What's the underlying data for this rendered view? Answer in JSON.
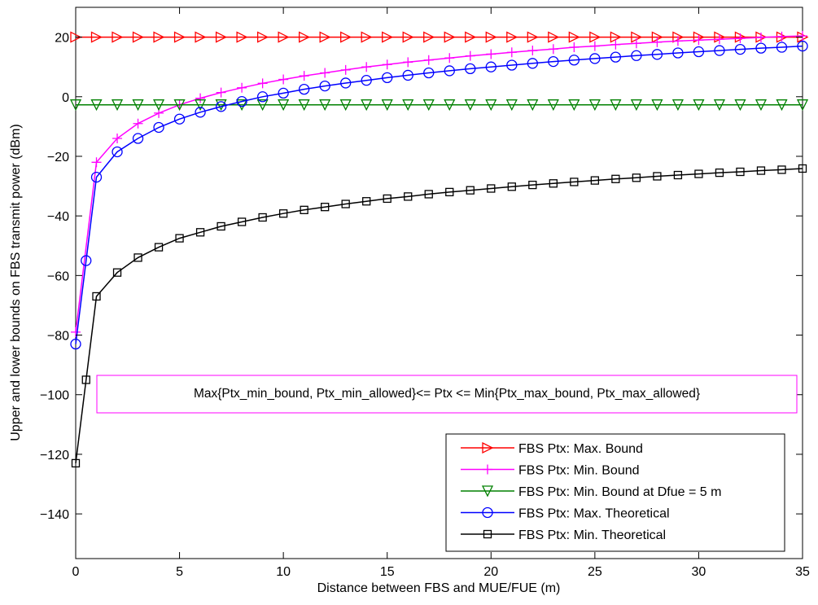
{
  "chart_data": {
    "type": "line",
    "xlabel": "Distance between FBS and MUE/FUE (m)",
    "ylabel": "Upper and lower bounds on FBS transmit power (dBm)",
    "xlim": [
      0,
      35
    ],
    "ylim": [
      -155,
      30
    ],
    "xticks": [
      0,
      5,
      10,
      15,
      20,
      25,
      30,
      35
    ],
    "yticks": [
      -140,
      -120,
      -100,
      -80,
      -60,
      -40,
      -20,
      0,
      20
    ],
    "grid": false,
    "legend_position": "bottom-right",
    "annotation": "Max{Ptx_min_bound, Ptx_min_allowed}<= Ptx <= Min{Ptx_max_bound, Ptx_max_allowed}",
    "series": [
      {
        "name": "FBS Ptx: Max. Bound",
        "color": "#ff0000",
        "marker": "triangle-right",
        "x": [
          0,
          1,
          2,
          3,
          4,
          5,
          6,
          7,
          8,
          9,
          10,
          11,
          12,
          13,
          14,
          15,
          16,
          17,
          18,
          19,
          20,
          21,
          22,
          23,
          24,
          25,
          26,
          27,
          28,
          29,
          30,
          31,
          32,
          33,
          34,
          35
        ],
        "y": [
          20,
          20,
          20,
          20,
          20,
          20,
          20,
          20,
          20,
          20,
          20,
          20,
          20,
          20,
          20,
          20,
          20,
          20,
          20,
          20,
          20,
          20,
          20,
          20,
          20,
          20,
          20,
          20,
          20,
          20,
          20,
          20,
          20,
          20,
          20,
          20
        ]
      },
      {
        "name": "FBS Ptx: Min. Bound",
        "color": "#ff00ff",
        "marker": "plus",
        "x": [
          0,
          1,
          2,
          3,
          4,
          5,
          6,
          7,
          8,
          9,
          10,
          11,
          12,
          13,
          14,
          15,
          16,
          17,
          18,
          19,
          20,
          21,
          22,
          23,
          24,
          25,
          26,
          27,
          28,
          29,
          30,
          31,
          32,
          33,
          34,
          35
        ],
        "y": [
          -79,
          -22,
          -14,
          -9,
          -5.5,
          -2.7,
          -0.5,
          1.4,
          3,
          4.5,
          5.8,
          7,
          8,
          9,
          10,
          10.8,
          11.6,
          12.3,
          13,
          13.7,
          14.3,
          14.9,
          15.5,
          16,
          16.6,
          17,
          17.5,
          17.9,
          18.3,
          18.7,
          19,
          19.3,
          19.6,
          19.9,
          20.2,
          20.4
        ]
      },
      {
        "name": "FBS Ptx: Min. Bound at Dfue = 5 m",
        "color": "#008000",
        "marker": "triangle-down",
        "x": [
          0,
          1,
          2,
          3,
          4,
          5,
          6,
          7,
          8,
          9,
          10,
          11,
          12,
          13,
          14,
          15,
          16,
          17,
          18,
          19,
          20,
          21,
          22,
          23,
          24,
          25,
          26,
          27,
          28,
          29,
          30,
          31,
          32,
          33,
          34,
          35
        ],
        "y": [
          -2.7,
          -2.7,
          -2.7,
          -2.7,
          -2.7,
          -2.7,
          -2.7,
          -2.7,
          -2.7,
          -2.7,
          -2.7,
          -2.7,
          -2.7,
          -2.7,
          -2.7,
          -2.7,
          -2.7,
          -2.7,
          -2.7,
          -2.7,
          -2.7,
          -2.7,
          -2.7,
          -2.7,
          -2.7,
          -2.7,
          -2.7,
          -2.7,
          -2.7,
          -2.7,
          -2.7,
          -2.7,
          -2.7,
          -2.7,
          -2.7,
          -2.7
        ]
      },
      {
        "name": "FBS Ptx: Max. Theoretical",
        "color": "#0000ff",
        "marker": "circle",
        "x": [
          0,
          0.5,
          1,
          2,
          3,
          4,
          5,
          6,
          7,
          8,
          9,
          10,
          11,
          12,
          13,
          14,
          15,
          16,
          17,
          18,
          19,
          20,
          21,
          22,
          23,
          24,
          25,
          26,
          27,
          28,
          29,
          30,
          31,
          32,
          33,
          34,
          35
        ],
        "y": [
          -83,
          -55,
          -27,
          -18.5,
          -14,
          -10.3,
          -7.5,
          -5.2,
          -3.3,
          -1.6,
          0,
          1.2,
          2.5,
          3.6,
          4.6,
          5.5,
          6.4,
          7.2,
          8,
          8.7,
          9.4,
          10,
          10.6,
          11.2,
          11.8,
          12.3,
          12.8,
          13.3,
          13.8,
          14.2,
          14.7,
          15.1,
          15.5,
          15.9,
          16.3,
          16.6,
          17
        ]
      },
      {
        "name": "FBS Ptx: Min. Theoretical",
        "color": "#000000",
        "marker": "square",
        "x": [
          0,
          0.5,
          1,
          2,
          3,
          4,
          5,
          6,
          7,
          8,
          9,
          10,
          11,
          12,
          13,
          14,
          15,
          16,
          17,
          18,
          19,
          20,
          21,
          22,
          23,
          24,
          25,
          26,
          27,
          28,
          29,
          30,
          31,
          32,
          33,
          34,
          35
        ],
        "y": [
          -123,
          -95,
          -67,
          -59,
          -54,
          -50.5,
          -47.5,
          -45.5,
          -43.5,
          -42,
          -40.5,
          -39.2,
          -38,
          -37,
          -36,
          -35.1,
          -34.2,
          -33.5,
          -32.7,
          -32,
          -31.4,
          -30.8,
          -30.2,
          -29.6,
          -29.1,
          -28.6,
          -28.1,
          -27.6,
          -27.2,
          -26.7,
          -26.3,
          -25.9,
          -25.5,
          -25.2,
          -24.8,
          -24.5,
          -24.1
        ]
      }
    ]
  }
}
